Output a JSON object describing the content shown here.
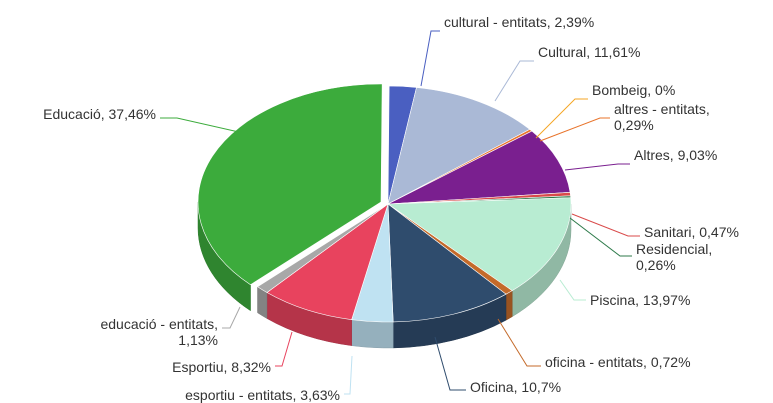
{
  "chart_data": {
    "type": "pie",
    "style": "3d",
    "title": "",
    "slices": [
      {
        "name": "cultural - entitats",
        "value": 2.39,
        "label": "cultural - entitats, 2,39%",
        "color": "#4a5fc1"
      },
      {
        "name": "Cultural",
        "value": 11.61,
        "label": "Cultural, 11,61%",
        "color": "#aab9d6"
      },
      {
        "name": "Bombeig",
        "value": 0,
        "label": "Bombeig, 0%",
        "color": "#f5a623"
      },
      {
        "name": "altres - entitats",
        "value": 0.29,
        "label": "altres - entitats, 0,29%",
        "color": "#e8732a"
      },
      {
        "name": "Altres",
        "value": 9.03,
        "label": "Altres, 9,03%",
        "color": "#7a1f8f"
      },
      {
        "name": "Sanitari",
        "value": 0.47,
        "label": "Sanitari, 0,47%",
        "color": "#d94a4a"
      },
      {
        "name": "Residencial",
        "value": 0.26,
        "label": "Residencial, 0,26%",
        "color": "#2d7a4a"
      },
      {
        "name": "Piscina",
        "value": 13.97,
        "label": "Piscina, 13,97%",
        "color": "#b8ecd2"
      },
      {
        "name": "oficina - entitats",
        "value": 0.72,
        "label": "oficina - entitats, 0,72%",
        "color": "#c46a2a"
      },
      {
        "name": "Oficina",
        "value": 10.7,
        "label": "Oficina, 10,7%",
        "color": "#2f4c6d"
      },
      {
        "name": "esportiu - entitats",
        "value": 3.63,
        "label": "esportiu - entitats, 3,63%",
        "color": "#bfe2f2"
      },
      {
        "name": "Esportiu",
        "value": 8.32,
        "label": "Esportiu, 8,32%",
        "color": "#e8435e"
      },
      {
        "name": "educació - entitats",
        "value": 1.13,
        "label": "educació - entitats, 1,13%",
        "color": "#a8a8a8"
      },
      {
        "name": "Educació",
        "value": 37.46,
        "label": "Educació, 37,46%",
        "color": "#3cab3c"
      }
    ]
  }
}
